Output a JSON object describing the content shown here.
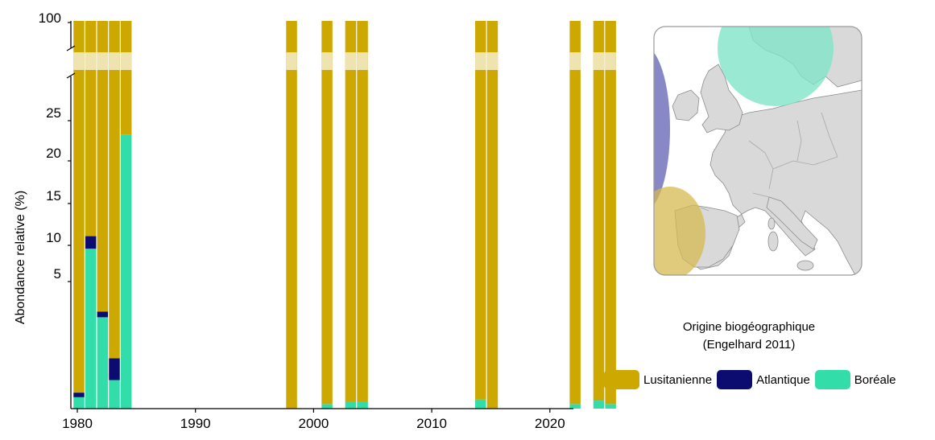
{
  "chart_data": {
    "type": "bar",
    "stacked": true,
    "ylabel": "Abondance relative (%)",
    "xlabel": "",
    "x_ticks": [
      "1980",
      "1990",
      "2000",
      "2010",
      "2020"
    ],
    "y_ticks_lower": [
      "5",
      "10",
      "15",
      "20",
      "25"
    ],
    "y_tick_upper": "100",
    "axis_break": true,
    "x_range": [
      1980,
      2025
    ],
    "colors": {
      "Lusitanienne": "#CCA800",
      "Atlantique": "#0B0B70",
      "Boréale": "#33DDAA",
      "break_band": "#EFE3B0"
    },
    "years": [
      1980,
      1981,
      1982,
      1983,
      1984,
      1998,
      2001,
      2003,
      2004,
      2014,
      2015,
      2022,
      2024,
      2025
    ],
    "series": [
      {
        "name": "Boréale",
        "values": [
          1,
          14,
          8,
          2.5,
          24,
          0,
          0.4,
          0.6,
          0.6,
          0.8,
          0,
          0.4,
          0.7,
          0.4
        ]
      },
      {
        "name": "Atlantique",
        "values": [
          0.4,
          1.1,
          0.5,
          1.9,
          0,
          0,
          0,
          0,
          0,
          0,
          0,
          0,
          0,
          0
        ]
      },
      {
        "name": "Lusitanienne",
        "values": [
          98.6,
          84.9,
          91.5,
          95.6,
          76,
          100,
          99.6,
          99.4,
          99.4,
          99.2,
          100,
          99.6,
          99.3,
          99.6
        ]
      }
    ],
    "legend": {
      "title_line1": "Origine biogéographique",
      "title_line2": "(Engelhard 2011)",
      "entries": [
        "Lusitanienne",
        "Atlantique",
        "Boréale"
      ]
    }
  },
  "map": {
    "land_color": "#D9D9D9",
    "sea_color": "#FFFFFF",
    "border_color": "#8C8C8C",
    "regions": [
      {
        "name": "Atlantique",
        "color": "#7B7BC0"
      },
      {
        "name": "Boréale",
        "color": "#7FE3C8"
      },
      {
        "name": "Lusitanienne",
        "color": "#D6BA50"
      }
    ]
  }
}
